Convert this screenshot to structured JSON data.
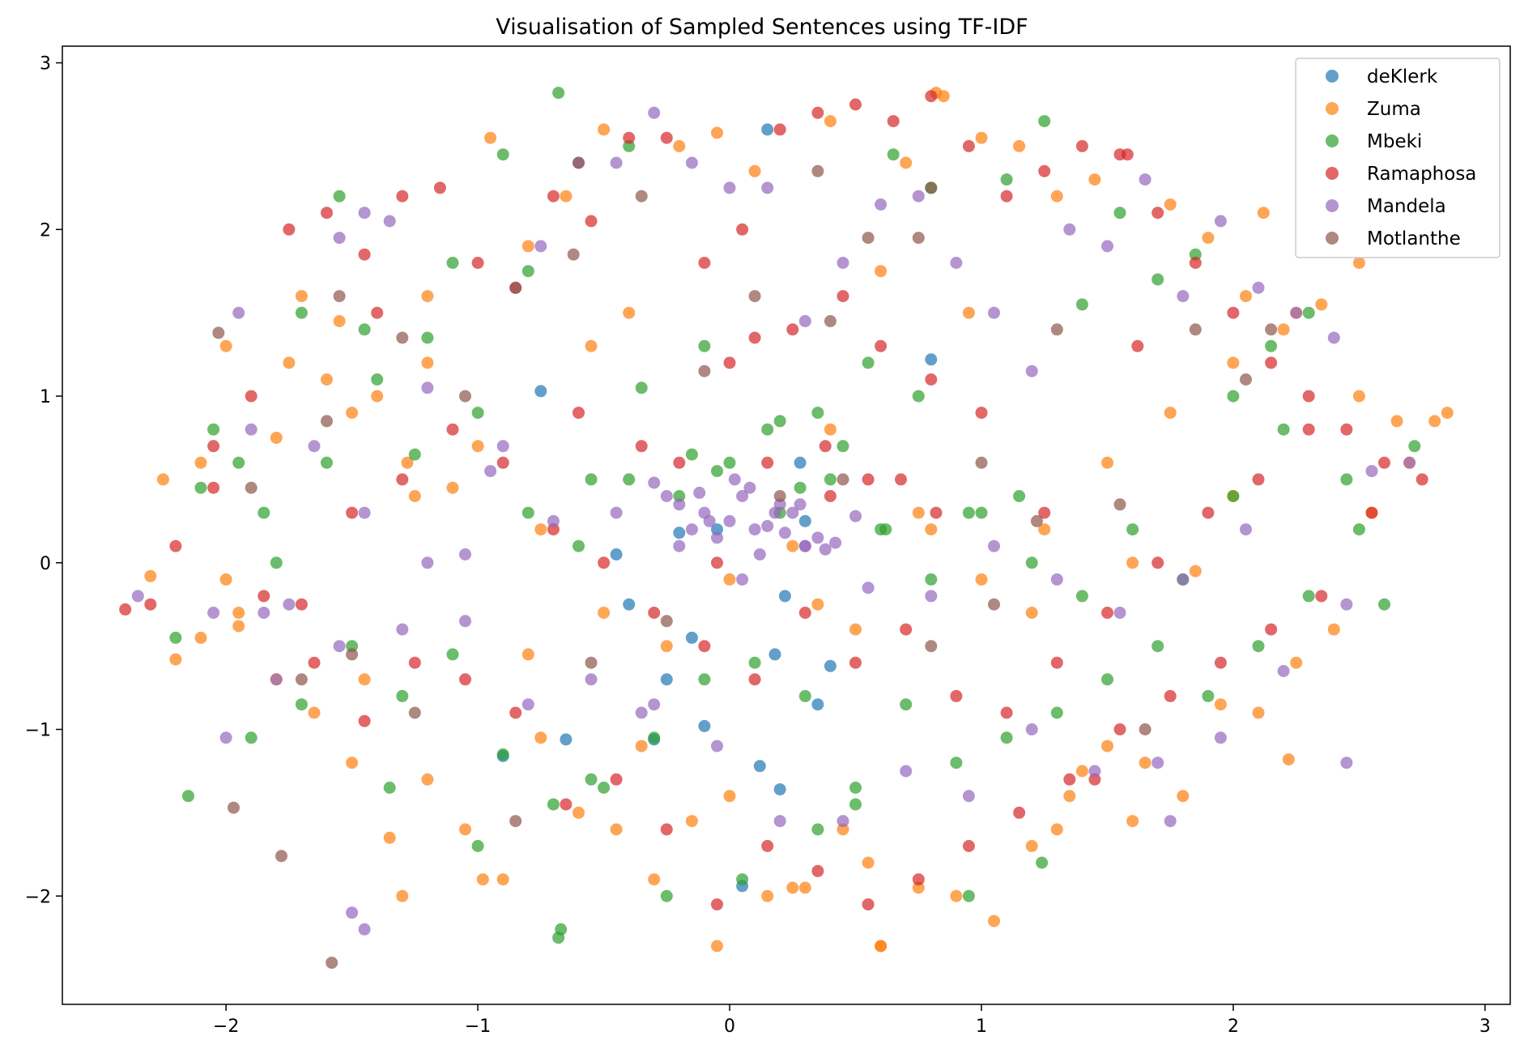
{
  "chart_data": {
    "type": "scatter",
    "title": "Visualisation of Sampled Sentences using TF-IDF",
    "xlabel": "",
    "ylabel": "",
    "xlim": [
      -2.65,
      3.1
    ],
    "ylim": [
      -2.65,
      3.1
    ],
    "xticks": [
      -2,
      -1,
      0,
      1,
      2,
      3
    ],
    "yticks": [
      -2,
      -1,
      0,
      1,
      2,
      3
    ],
    "xtick_labels": [
      "−2",
      "−1",
      "0",
      "1",
      "2",
      "3"
    ],
    "ytick_labels": [
      "−2",
      "−1",
      "0",
      "1",
      "2",
      "3"
    ],
    "grid": false,
    "legend_position": "top-right",
    "point_alpha": 0.7,
    "series": [
      {
        "name": "deKlerk",
        "color": "#1f77b4",
        "x": [
          0.15,
          -0.75,
          -0.2,
          0.3,
          -0.4,
          0.8,
          -0.1,
          0.2,
          0.05,
          -0.65,
          -0.3,
          0.4,
          -0.05,
          0.12,
          -0.45,
          0.22,
          -0.9,
          0.35,
          0.18,
          -0.25,
          0.28,
          -0.15
        ],
        "y": [
          2.6,
          1.03,
          0.18,
          0.25,
          -0.25,
          1.22,
          -0.98,
          -1.36,
          -1.94,
          -1.06,
          -1.06,
          -0.62,
          0.2,
          -1.22,
          0.05,
          -0.2,
          -1.16,
          -0.85,
          -0.55,
          -0.7,
          0.6,
          -0.45
        ]
      },
      {
        "name": "Zuma",
        "color": "#ff7f0e",
        "x": [
          -2.3,
          -2.2,
          -2.1,
          -1.95,
          -1.8,
          -1.7,
          -1.55,
          -1.4,
          -1.3,
          -1.2,
          -1.1,
          -0.95,
          -0.8,
          -0.65,
          -0.5,
          -0.35,
          -0.2,
          -0.05,
          0.1,
          0.25,
          0.4,
          0.55,
          0.7,
          0.85,
          1.0,
          1.15,
          1.3,
          1.45,
          1.6,
          1.75,
          1.9,
          2.05,
          2.2,
          2.35,
          2.5,
          2.65,
          2.85,
          2.8,
          2.7,
          2.55,
          2.4,
          2.25,
          2.1,
          1.95,
          1.8,
          1.65,
          1.5,
          1.35,
          1.2,
          1.05,
          0.9,
          0.75,
          0.6,
          0.45,
          0.3,
          0.15,
          0.0,
          -0.15,
          -0.3,
          -0.45,
          -0.6,
          -0.75,
          -0.9,
          -1.05,
          -1.2,
          -1.35,
          -1.5,
          -1.65,
          -1.8,
          -1.95,
          -2.1,
          -2.25,
          -2.0,
          -1.75,
          -1.5,
          -1.25,
          -1.0,
          -0.75,
          -0.5,
          -0.25,
          0.0,
          0.25,
          0.5,
          0.75,
          1.0,
          1.25,
          1.5,
          1.75,
          2.0,
          2.25,
          2.5,
          2.0,
          1.6,
          1.2,
          0.8,
          0.4,
          -0.4,
          -0.8,
          -1.2,
          -1.6,
          -2.0,
          0.6,
          -0.05,
          0.95,
          1.3,
          -0.55,
          0.35,
          1.85,
          -1.45,
          0.82,
          2.22,
          -0.98,
          0.6,
          2.12,
          1.4,
          -1.28
        ],
        "y": [
          -0.08,
          -0.58,
          0.6,
          -0.38,
          0.75,
          1.6,
          1.45,
          1.0,
          -2.0,
          1.2,
          0.45,
          2.55,
          -0.55,
          2.2,
          2.6,
          -1.1,
          2.5,
          -2.3,
          2.35,
          -1.95,
          2.65,
          -1.8,
          2.4,
          2.8,
          2.55,
          2.5,
          -1.6,
          2.3,
          -1.55,
          2.15,
          1.95,
          1.6,
          1.4,
          1.55,
          1.0,
          0.85,
          0.9,
          0.85,
          0.6,
          0.3,
          -0.4,
          -0.6,
          -0.9,
          -0.85,
          -1.4,
          -1.2,
          -1.1,
          -1.4,
          -1.7,
          -2.15,
          -2.0,
          -1.95,
          -2.3,
          -1.6,
          -1.95,
          -2.0,
          -1.4,
          -1.55,
          -1.9,
          -1.6,
          -1.5,
          -1.05,
          -1.9,
          -1.6,
          -1.3,
          -1.65,
          -1.2,
          -0.9,
          -0.7,
          -0.3,
          -0.45,
          0.5,
          1.3,
          1.2,
          0.9,
          0.4,
          0.7,
          0.2,
          -0.3,
          -0.5,
          -0.1,
          0.1,
          -0.4,
          0.3,
          -0.1,
          0.2,
          0.6,
          0.9,
          1.2,
          1.5,
          1.8,
          0.4,
          0.0,
          -0.3,
          0.2,
          0.8,
          1.5,
          1.9,
          1.6,
          1.1,
          -0.1,
          1.75,
          2.58,
          1.5,
          2.2,
          1.3,
          -0.25,
          -0.05,
          -0.7,
          2.82,
          -1.18,
          -1.9,
          -2.3,
          2.1,
          -1.25,
          0.6
        ]
      },
      {
        "name": "Mbeki",
        "color": "#2ca02c",
        "x": [
          -2.15,
          -2.2,
          -2.05,
          -1.95,
          -1.85,
          -1.7,
          -1.55,
          -1.45,
          -1.35,
          -1.25,
          -1.1,
          -1.0,
          -0.9,
          -0.8,
          -0.68,
          -0.55,
          -0.4,
          -0.25,
          -0.1,
          0.05,
          0.2,
          0.35,
          0.5,
          0.65,
          0.8,
          0.95,
          1.1,
          1.25,
          1.4,
          1.55,
          1.7,
          1.85,
          2.0,
          2.15,
          2.3,
          2.45,
          2.6,
          2.72,
          2.5,
          2.3,
          2.1,
          1.9,
          1.7,
          1.5,
          1.3,
          1.1,
          0.9,
          0.7,
          0.5,
          0.3,
          0.1,
          -0.1,
          -0.3,
          -0.5,
          -0.7,
          -0.9,
          -1.1,
          -1.3,
          -1.5,
          -1.7,
          -1.9,
          -2.1,
          -1.8,
          -1.6,
          -1.4,
          -1.2,
          -1.0,
          -0.8,
          -0.6,
          -0.4,
          -0.2,
          0.0,
          0.2,
          0.4,
          0.6,
          0.8,
          1.0,
          1.2,
          1.4,
          1.6,
          1.8,
          2.0,
          2.2,
          0.15,
          0.35,
          0.55,
          -0.15,
          -0.35,
          0.75,
          0.95,
          -0.55,
          1.15,
          1.24,
          -0.67,
          -0.68,
          0.28,
          0.45,
          0.62,
          -0.05
        ],
        "y": [
          -1.4,
          -0.45,
          0.8,
          0.6,
          0.3,
          1.5,
          2.2,
          1.4,
          -1.35,
          0.65,
          1.8,
          -1.7,
          2.45,
          1.75,
          2.82,
          -1.3,
          2.5,
          -2.0,
          1.3,
          -1.9,
          0.85,
          -1.6,
          -1.35,
          2.45,
          2.25,
          -2.0,
          2.3,
          2.65,
          1.55,
          2.1,
          1.7,
          1.85,
          1.0,
          1.3,
          1.5,
          0.5,
          -0.25,
          0.7,
          0.2,
          -0.2,
          -0.5,
          -0.8,
          -0.5,
          -0.7,
          -0.9,
          -1.05,
          -1.2,
          -0.85,
          -1.45,
          -0.8,
          -0.6,
          -0.7,
          -1.05,
          -1.35,
          -1.45,
          -1.15,
          -0.55,
          -0.8,
          -0.5,
          -0.85,
          -1.05,
          0.45,
          0.0,
          0.6,
          1.1,
          1.35,
          0.9,
          0.3,
          0.1,
          0.5,
          0.4,
          0.6,
          0.3,
          0.5,
          0.2,
          -0.1,
          0.3,
          0.0,
          -0.2,
          0.2,
          -0.1,
          0.4,
          0.8,
          0.8,
          0.9,
          1.2,
          0.65,
          1.05,
          1.0,
          0.3,
          0.5,
          0.4,
          -1.8,
          -2.2,
          -2.25,
          0.45,
          0.7,
          0.2,
          0.55
        ]
      },
      {
        "name": "Ramaphosa",
        "color": "#d62728",
        "x": [
          -2.4,
          -2.3,
          -2.2,
          -2.05,
          -1.9,
          -1.75,
          -1.6,
          -1.45,
          -1.3,
          -1.15,
          -1.0,
          -0.85,
          -0.7,
          -0.55,
          -0.4,
          -0.25,
          -0.1,
          0.05,
          0.2,
          0.35,
          0.5,
          0.65,
          0.8,
          0.95,
          1.1,
          1.25,
          1.4,
          1.55,
          1.7,
          1.85,
          2.0,
          2.15,
          2.3,
          2.45,
          2.6,
          2.75,
          2.55,
          2.35,
          2.15,
          1.95,
          1.75,
          1.55,
          1.35,
          1.15,
          0.95,
          0.75,
          0.55,
          0.35,
          0.15,
          -0.05,
          -0.25,
          -0.45,
          -0.65,
          -0.85,
          -1.05,
          -1.25,
          -1.45,
          -1.65,
          -1.85,
          -2.05,
          -1.7,
          -1.5,
          -1.3,
          -1.1,
          -0.9,
          -0.7,
          -0.5,
          -0.3,
          -0.1,
          0.1,
          0.3,
          0.5,
          0.7,
          0.9,
          1.1,
          1.3,
          1.5,
          1.7,
          1.9,
          2.1,
          2.3,
          -0.6,
          0.0,
          0.25,
          0.45,
          0.6,
          0.8,
          1.0,
          -0.2,
          0.4,
          -0.35,
          0.15,
          0.55,
          1.25,
          1.45,
          -1.4,
          0.1,
          0.38,
          0.68,
          0.82,
          -0.05,
          1.58,
          1.62
        ],
        "y": [
          -0.28,
          -0.25,
          0.1,
          0.7,
          1.0,
          2.0,
          2.1,
          1.85,
          2.2,
          2.25,
          1.8,
          1.65,
          2.2,
          2.05,
          2.55,
          2.55,
          1.8,
          2.0,
          2.6,
          2.7,
          2.75,
          2.65,
          2.8,
          2.5,
          2.2,
          2.35,
          2.5,
          2.45,
          2.1,
          1.8,
          1.5,
          1.2,
          1.0,
          0.8,
          0.6,
          0.5,
          0.3,
          -0.2,
          -0.4,
          -0.6,
          -0.8,
          -1.0,
          -1.3,
          -1.5,
          -1.7,
          -1.9,
          -2.05,
          -1.85,
          -1.7,
          -2.05,
          -1.6,
          -1.3,
          -1.45,
          -0.9,
          -0.7,
          -0.6,
          -0.95,
          -0.6,
          -0.2,
          0.45,
          -0.25,
          0.3,
          0.5,
          0.8,
          0.6,
          0.2,
          0.0,
          -0.3,
          -0.5,
          -0.7,
          -0.3,
          -0.6,
          -0.4,
          -0.8,
          -0.9,
          -0.6,
          -0.3,
          0.0,
          0.3,
          0.5,
          0.8,
          0.9,
          1.2,
          1.4,
          1.6,
          1.3,
          1.1,
          0.9,
          0.6,
          0.4,
          0.7,
          0.6,
          0.5,
          0.3,
          -1.3,
          1.5,
          1.35,
          0.7,
          0.5,
          0.3,
          0.0,
          2.45,
          1.3
        ]
      },
      {
        "name": "Mandela",
        "color": "#9467bd",
        "x": [
          -2.35,
          -2.0,
          -1.95,
          -1.9,
          -1.85,
          -1.75,
          -1.65,
          -1.55,
          -1.45,
          -1.35,
          -1.2,
          -1.05,
          -0.9,
          -0.75,
          -0.6,
          -0.45,
          -0.3,
          -0.15,
          0.0,
          0.15,
          0.3,
          0.45,
          0.6,
          0.75,
          0.9,
          1.05,
          1.2,
          1.35,
          1.5,
          1.65,
          1.8,
          1.95,
          2.1,
          2.25,
          2.4,
          2.55,
          2.7,
          2.45,
          2.2,
          1.95,
          1.7,
          1.45,
          1.2,
          0.95,
          0.7,
          0.45,
          0.2,
          -0.05,
          -0.3,
          -0.55,
          -0.8,
          -1.05,
          -1.3,
          -1.55,
          -1.8,
          -2.05,
          -1.45,
          -1.2,
          -0.95,
          -0.7,
          -0.45,
          -0.2,
          0.05,
          0.3,
          0.55,
          0.8,
          1.05,
          1.3,
          1.55,
          1.8,
          2.05,
          -0.1,
          0.0,
          0.1,
          0.2,
          -0.05,
          0.05,
          0.15,
          0.25,
          -0.15,
          0.35,
          -0.2,
          0.3,
          0.08,
          0.18,
          -0.08,
          0.12,
          0.28,
          -0.12,
          0.42,
          -0.3,
          0.5,
          0.02,
          0.22,
          -0.25,
          0.38,
          -1.5,
          -0.35,
          1.75,
          2.45,
          -1.45
        ],
        "y": [
          -0.2,
          -1.05,
          1.5,
          0.8,
          -0.3,
          -0.25,
          0.7,
          1.95,
          2.1,
          2.05,
          1.05,
          0.05,
          0.7,
          1.9,
          2.4,
          2.4,
          2.7,
          2.4,
          2.25,
          2.25,
          1.45,
          1.8,
          2.15,
          2.2,
          1.8,
          1.5,
          1.15,
          2.0,
          1.9,
          2.3,
          1.6,
          2.05,
          1.65,
          1.5,
          1.35,
          0.55,
          0.6,
          -0.25,
          -0.65,
          -1.05,
          -1.2,
          -1.25,
          -1.0,
          -1.4,
          -1.25,
          -1.55,
          -1.55,
          -1.1,
          -0.85,
          -0.7,
          -0.85,
          -0.35,
          -0.4,
          -0.5,
          -0.7,
          -0.3,
          0.3,
          0.0,
          0.55,
          0.25,
          0.3,
          0.1,
          -0.1,
          0.1,
          -0.15,
          -0.2,
          0.1,
          -0.1,
          -0.3,
          -0.1,
          0.2,
          0.3,
          0.25,
          0.2,
          0.35,
          0.15,
          0.4,
          0.22,
          0.3,
          0.2,
          0.15,
          0.35,
          0.1,
          0.45,
          0.3,
          0.25,
          0.05,
          0.35,
          0.42,
          0.12,
          0.48,
          0.28,
          0.5,
          0.18,
          0.4,
          0.08,
          -2.1,
          -0.9,
          -1.55,
          -1.2,
          -2.2
        ]
      },
      {
        "name": " Motlanthe",
        "color": "#8c564b",
        "x": [
          -1.58,
          -1.97,
          -1.78,
          -1.55,
          -2.03,
          -1.9,
          -1.6,
          -1.3,
          -1.05,
          -0.85,
          -0.6,
          -0.35,
          -0.1,
          0.1,
          0.35,
          0.55,
          0.8,
          1.0,
          1.3,
          1.55,
          1.85,
          2.05,
          2.15,
          1.65,
          1.05,
          0.8,
          0.45,
          0.2,
          -0.25,
          -0.55,
          -0.85,
          -1.25,
          -1.5,
          -1.7,
          -0.62,
          0.4,
          0.75,
          1.22
        ],
        "y": [
          -2.4,
          -1.47,
          -1.76,
          1.6,
          1.38,
          0.45,
          0.85,
          1.35,
          1.0,
          1.65,
          2.4,
          2.2,
          1.15,
          1.6,
          2.35,
          1.95,
          2.25,
          0.6,
          1.4,
          0.35,
          1.4,
          1.1,
          1.4,
          -1.0,
          -0.25,
          -0.5,
          0.5,
          0.4,
          -0.35,
          -0.6,
          -1.55,
          -0.9,
          -0.55,
          -0.7,
          1.85,
          1.45,
          1.95,
          0.25
        ]
      }
    ]
  }
}
